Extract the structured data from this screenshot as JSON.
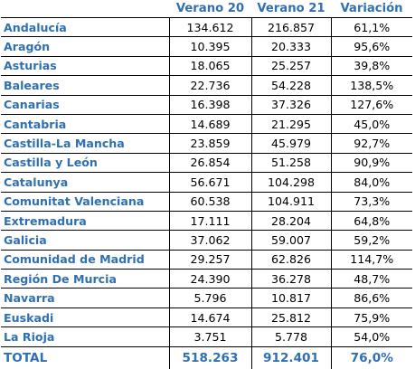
{
  "table": {
    "headers": {
      "region": "",
      "verano20": "Verano 20",
      "verano21": "Verano 21",
      "variacion": "Variación"
    },
    "rows": [
      {
        "region": "Andalucía",
        "verano20": "134.612",
        "verano21": "216.857",
        "variacion": "61,1%"
      },
      {
        "region": "Aragón",
        "verano20": "10.395",
        "verano21": "20.333",
        "variacion": "95,6%"
      },
      {
        "region": "Asturias",
        "verano20": "18.065",
        "verano21": "25.257",
        "variacion": "39,8%"
      },
      {
        "region": "Baleares",
        "verano20": "22.736",
        "verano21": "54.228",
        "variacion": "138,5%"
      },
      {
        "region": "Canarias",
        "verano20": "16.398",
        "verano21": "37.326",
        "variacion": "127,6%"
      },
      {
        "region": "Cantabria",
        "verano20": "14.689",
        "verano21": "21.295",
        "variacion": "45,0%"
      },
      {
        "region": "Castilla-La Mancha",
        "verano20": "23.859",
        "verano21": "45.979",
        "variacion": "92,7%"
      },
      {
        "region": "Castilla y León",
        "verano20": "26.854",
        "verano21": "51.258",
        "variacion": "90,9%"
      },
      {
        "region": "Catalunya",
        "verano20": "56.671",
        "verano21": "104.298",
        "variacion": "84,0%"
      },
      {
        "region": "Comunitat Valenciana",
        "verano20": "60.538",
        "verano21": "104.911",
        "variacion": "73,3%"
      },
      {
        "region": "Extremadura",
        "verano20": "17.111",
        "verano21": "28.204",
        "variacion": "64,8%"
      },
      {
        "region": "Galicia",
        "verano20": "37.062",
        "verano21": "59.007",
        "variacion": "59,2%"
      },
      {
        "region": "Comunidad de Madrid",
        "verano20": "29.257",
        "verano21": "62.826",
        "variacion": "114,7%"
      },
      {
        "region": "Región De Murcia",
        "verano20": "24.390",
        "verano21": "36.278",
        "variacion": "48,7%"
      },
      {
        "region": "Navarra",
        "verano20": "5.796",
        "verano21": "10.817",
        "variacion": "86,6%"
      },
      {
        "region": "Euskadi",
        "verano20": "14.674",
        "verano21": "25.812",
        "variacion": "75,9%"
      },
      {
        "region": "La Rioja",
        "verano20": "3.751",
        "verano21": "5.778",
        "variacion": "54,0%"
      }
    ],
    "total": {
      "region": "TOTAL",
      "verano20": "518.263",
      "verano21": "912.401",
      "variacion": "76,0%"
    }
  },
  "colors": {
    "label_blue": "#2f6fb4",
    "text": "#000000",
    "rule": "#000000",
    "background": "#ffffff"
  }
}
